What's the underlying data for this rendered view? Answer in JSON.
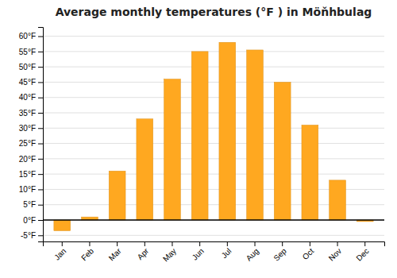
{
  "chart_data": {
    "type": "bar",
    "title": "Average monthly temperatures (°F ) in Möňhbulag",
    "categories": [
      "Jan",
      "Feb",
      "Mar",
      "Apr",
      "May",
      "Jun",
      "Jul",
      "Aug",
      "Sep",
      "Oct",
      "Nov",
      "Dec"
    ],
    "values": [
      -3.5,
      1.0,
      16.0,
      33.0,
      46.0,
      55.0,
      58.0,
      55.5,
      45.0,
      31.0,
      13.0,
      -0.5
    ],
    "color": "#FFA820",
    "ylim": [
      -7,
      63
    ],
    "yticks": [
      {
        "value": -5,
        "label": "-5°F"
      },
      {
        "value": 0,
        "label": "0°F"
      },
      {
        "value": 5,
        "label": "5°F"
      },
      {
        "value": 10,
        "label": "10°F"
      },
      {
        "value": 15,
        "label": "15°F"
      },
      {
        "value": 20,
        "label": "20°F"
      },
      {
        "value": 25,
        "label": "25°F"
      },
      {
        "value": 30,
        "label": "30°F"
      },
      {
        "value": 35,
        "label": "35°F"
      },
      {
        "value": 40,
        "label": "40°F"
      },
      {
        "value": 45,
        "label": "45°F"
      },
      {
        "value": 50,
        "label": "50°F"
      },
      {
        "value": 55,
        "label": "55°F"
      },
      {
        "value": 60,
        "label": "60°F"
      }
    ],
    "grid": true
  }
}
